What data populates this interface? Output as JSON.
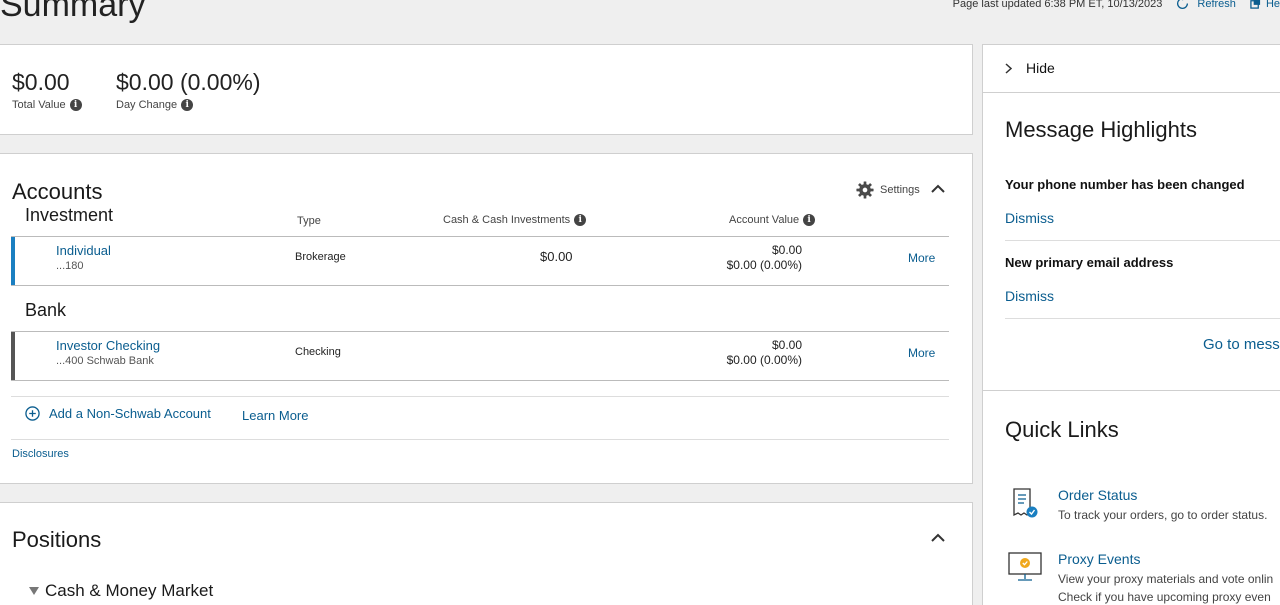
{
  "header": {
    "title": "Summary",
    "last_updated": "Page last updated  6:38 PM ET, 10/13/2023",
    "refresh_label": "Refresh",
    "help_label": "He"
  },
  "summary": {
    "total_value": "$0.00",
    "total_value_label": "Total Value",
    "day_change": "$0.00 (0.00%)",
    "day_change_label": "Day Change"
  },
  "accounts": {
    "title": "Accounts",
    "settings_label": "Settings",
    "columns": {
      "type": "Type",
      "cash": "Cash & Cash Investments",
      "account_value": "Account Value"
    },
    "groups": [
      {
        "name": "Investment",
        "rows": [
          {
            "name": "Individual",
            "number": "...180",
            "type": "Brokerage",
            "cash": "$0.00",
            "value": "$0.00",
            "change": "$0.00 (0.00%)",
            "more": "More"
          }
        ]
      },
      {
        "name": "Bank",
        "rows": [
          {
            "name": "Investor Checking",
            "number": "...400 Schwab Bank",
            "type": "Checking",
            "cash": "",
            "value": "$0.00",
            "change": "$0.00 (0.00%)",
            "more": "More"
          }
        ]
      }
    ],
    "add_account_label": "Add a Non-Schwab Account",
    "learn_more_label": "Learn More",
    "disclosures_label": "Disclosures"
  },
  "positions": {
    "title": "Positions",
    "group_label": "Cash & Money Market"
  },
  "right_panel": {
    "hide_label": "Hide",
    "message_highlights_title": "Message Highlights",
    "messages": [
      {
        "title": "Your phone number has been changed",
        "dismiss": "Dismiss"
      },
      {
        "title": "New primary email address",
        "dismiss": "Dismiss"
      }
    ],
    "go_to_messages_label": "Go to mess",
    "quick_links_title": "Quick Links",
    "quick_links": [
      {
        "title": "Order Status",
        "desc": "To track your orders, go to order status.",
        "desc2": ""
      },
      {
        "title": "Proxy Events",
        "desc": "View your proxy materials and vote onlin",
        "desc2": "Check if you have upcoming proxy even"
      }
    ]
  },
  "colors": {
    "accent": "#0a5d8f",
    "investment_bar": "#1a7fc1",
    "bank_bar": "#555555"
  }
}
